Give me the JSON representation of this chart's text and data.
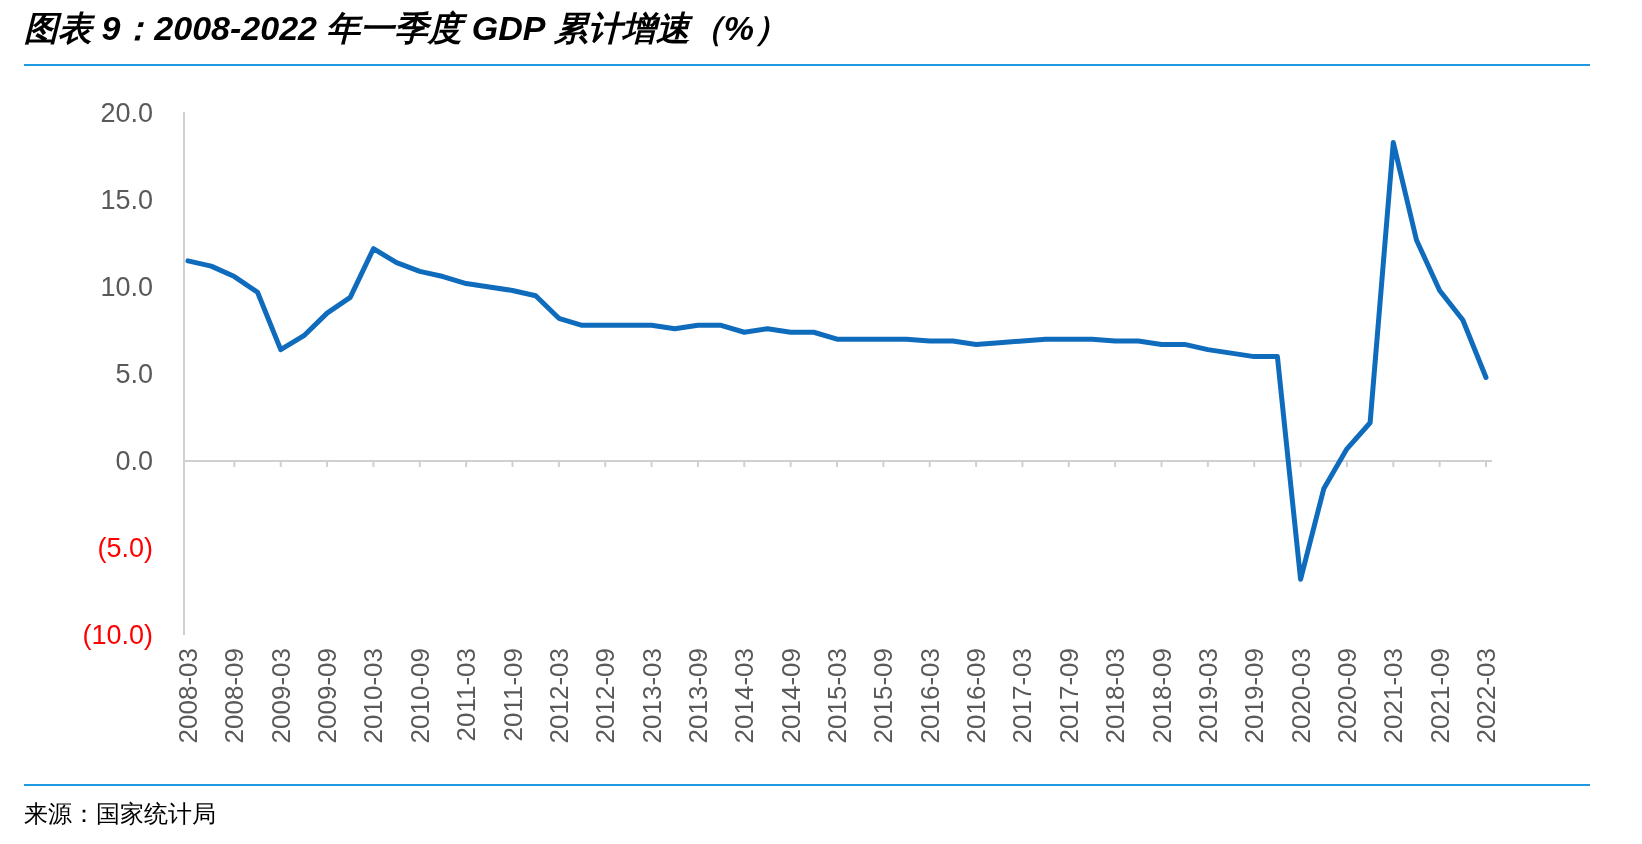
{
  "chart_data": {
    "type": "line",
    "title": "图表 9：2008-2022 年一季度 GDP 累计增速（%）",
    "categories": [
      "2008-03",
      null,
      "2008-09",
      null,
      "2009-03",
      null,
      "2009-09",
      null,
      "2010-03",
      null,
      "2010-09",
      null,
      "2011-03",
      null,
      "2011-09",
      null,
      "2012-03",
      null,
      "2012-09",
      null,
      "2013-03",
      null,
      "2013-09",
      null,
      "2014-03",
      null,
      "2014-09",
      null,
      "2015-03",
      null,
      "2015-09",
      null,
      "2016-03",
      null,
      "2016-09",
      null,
      "2017-03",
      null,
      "2017-09",
      null,
      "2018-03",
      null,
      "2018-09",
      null,
      "2019-03",
      null,
      "2019-09",
      null,
      "2020-03",
      null,
      "2020-09",
      null,
      "2021-03",
      null,
      "2021-09",
      null,
      "2022-03"
    ],
    "values": [
      11.5,
      11.2,
      10.6,
      9.7,
      6.4,
      7.2,
      8.5,
      9.4,
      12.2,
      11.4,
      10.9,
      10.6,
      10.2,
      10.0,
      9.8,
      9.5,
      8.2,
      7.8,
      7.8,
      7.8,
      7.8,
      7.6,
      7.8,
      7.8,
      7.4,
      7.6,
      7.4,
      7.4,
      7.0,
      7.0,
      7.0,
      7.0,
      6.9,
      6.9,
      6.7,
      6.8,
      6.9,
      7.0,
      7.0,
      7.0,
      6.9,
      6.9,
      6.7,
      6.7,
      6.4,
      6.2,
      6.0,
      6.0,
      -6.8,
      -1.6,
      0.7,
      2.2,
      18.3,
      12.7,
      9.8,
      8.1,
      4.8
    ],
    "color": "#0f6cbd",
    "ylim": [
      -10,
      20
    ],
    "yticks": [
      {
        "value": 20,
        "label": "20.0"
      },
      {
        "value": 15,
        "label": "15.0"
      },
      {
        "value": 10,
        "label": "10.0"
      },
      {
        "value": 5,
        "label": "5.0"
      },
      {
        "value": 0,
        "label": "0.0"
      },
      {
        "value": -5,
        "label": "(5.0)"
      },
      {
        "value": -10,
        "label": "(10.0)"
      }
    ],
    "annotations": [
      "来源：国家统计局"
    ]
  }
}
